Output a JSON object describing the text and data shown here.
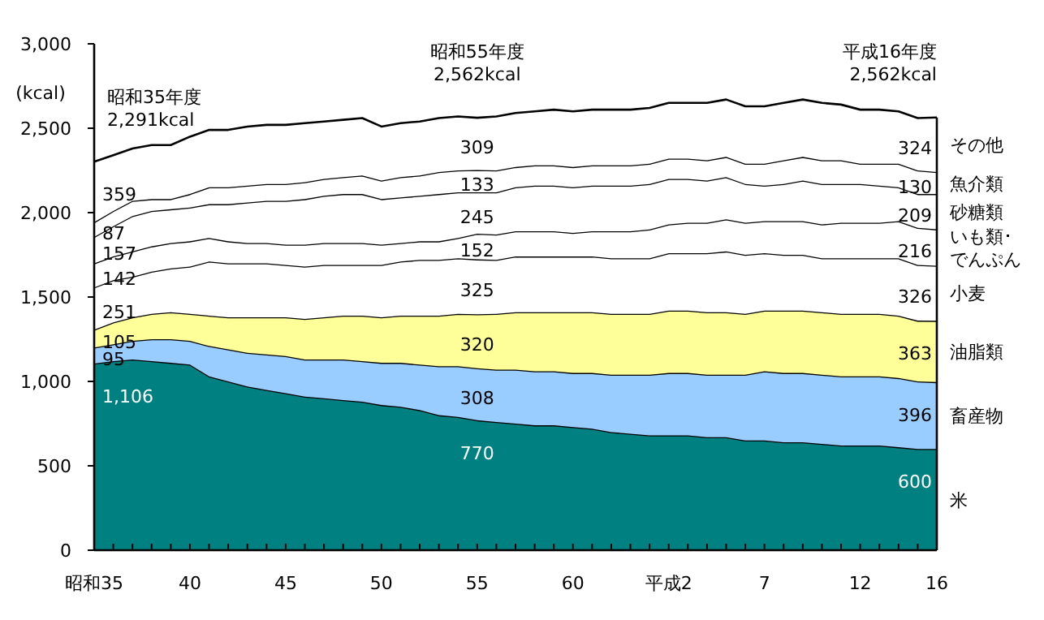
{
  "chart_data": {
    "type": "area",
    "stacked": true,
    "ylabel": "(kcal)",
    "categories": [
      "昭和35",
      null,
      null,
      null,
      null,
      "40",
      null,
      null,
      null,
      null,
      "45",
      null,
      null,
      null,
      null,
      "50",
      null,
      null,
      null,
      null,
      "55",
      null,
      null,
      null,
      null,
      "60",
      null,
      null,
      null,
      null,
      "平成2",
      null,
      null,
      null,
      null,
      "7",
      null,
      null,
      null,
      null,
      "12",
      null,
      null,
      null,
      "16"
    ],
    "ylim": [
      0,
      3000
    ],
    "yticks": [
      0,
      500,
      {
        "value": 1000,
        "label": "1,000"
      },
      {
        "value": 1500,
        "label": "1,500"
      },
      {
        "value": 2000,
        "label": "2,000"
      },
      {
        "value": 2500,
        "label": "2,500"
      },
      {
        "value": 3000,
        "label": "3,000"
      }
    ],
    "series": [
      {
        "name": "米",
        "color": "#008080",
        "values": [
          1106,
          1120,
          1130,
          1120,
          1110,
          1100,
          1030,
          1000,
          970,
          950,
          930,
          910,
          900,
          890,
          880,
          860,
          850,
          830,
          800,
          790,
          770,
          760,
          750,
          740,
          740,
          730,
          720,
          700,
          690,
          680,
          680,
          680,
          670,
          670,
          650,
          650,
          640,
          640,
          630,
          620,
          620,
          620,
          610,
          600,
          600
        ],
        "value_labels": [
          "1,106",
          null,
          null,
          null,
          null,
          null,
          null,
          null,
          null,
          null,
          null,
          null,
          null,
          null,
          null,
          null,
          null,
          null,
          null,
          null,
          "770",
          null,
          null,
          null,
          null,
          null,
          null,
          null,
          null,
          null,
          null,
          null,
          null,
          null,
          null,
          null,
          null,
          null,
          null,
          null,
          null,
          null,
          null,
          null,
          "600"
        ]
      },
      {
        "name": "畜産物",
        "color": "#99ccff",
        "values": [
          95,
          100,
          110,
          130,
          140,
          140,
          180,
          190,
          200,
          210,
          220,
          220,
          230,
          240,
          240,
          250,
          260,
          270,
          290,
          300,
          308,
          310,
          320,
          320,
          320,
          320,
          330,
          340,
          350,
          360,
          370,
          370,
          370,
          370,
          390,
          410,
          410,
          410,
          410,
          410,
          410,
          410,
          410,
          400,
          396
        ],
        "value_labels": [
          "95",
          null,
          null,
          null,
          null,
          null,
          null,
          null,
          null,
          null,
          null,
          null,
          null,
          null,
          null,
          null,
          null,
          null,
          null,
          null,
          "308",
          null,
          null,
          null,
          null,
          null,
          null,
          null,
          null,
          null,
          null,
          null,
          null,
          null,
          null,
          null,
          null,
          null,
          null,
          null,
          null,
          null,
          null,
          null,
          "396"
        ]
      },
      {
        "name": "油脂類",
        "color": "#ffff99",
        "values": [
          105,
          130,
          140,
          150,
          160,
          160,
          180,
          190,
          210,
          220,
          230,
          240,
          250,
          260,
          270,
          270,
          280,
          290,
          300,
          310,
          320,
          330,
          340,
          350,
          350,
          360,
          360,
          360,
          360,
          360,
          370,
          370,
          370,
          370,
          360,
          360,
          370,
          370,
          370,
          370,
          370,
          370,
          370,
          360,
          363
        ],
        "value_labels": [
          "105",
          null,
          null,
          null,
          null,
          null,
          null,
          null,
          null,
          null,
          null,
          null,
          null,
          null,
          null,
          null,
          null,
          null,
          null,
          null,
          "320",
          null,
          null,
          null,
          null,
          null,
          null,
          null,
          null,
          null,
          null,
          null,
          null,
          null,
          null,
          null,
          null,
          null,
          null,
          null,
          null,
          null,
          null,
          null,
          "363"
        ]
      },
      {
        "name": "小麦",
        "color": "#ffffff",
        "values": [
          251,
          250,
          240,
          250,
          260,
          280,
          320,
          320,
          320,
          320,
          310,
          310,
          310,
          300,
          300,
          310,
          320,
          330,
          330,
          330,
          325,
          320,
          330,
          330,
          330,
          330,
          330,
          330,
          330,
          330,
          340,
          340,
          350,
          360,
          350,
          340,
          330,
          330,
          320,
          330,
          330,
          330,
          340,
          330,
          326
        ],
        "value_labels": [
          "251",
          null,
          null,
          null,
          null,
          null,
          null,
          null,
          null,
          null,
          null,
          null,
          null,
          null,
          null,
          null,
          null,
          null,
          null,
          null,
          "325",
          null,
          null,
          null,
          null,
          null,
          null,
          null,
          null,
          null,
          null,
          null,
          null,
          null,
          null,
          null,
          null,
          null,
          null,
          null,
          null,
          null,
          null,
          null,
          "326"
        ]
      },
      {
        "name": "いも類･でんぷん",
        "color": "#ffffff",
        "values": [
          142,
          140,
          150,
          150,
          150,
          150,
          140,
          130,
          120,
          120,
          120,
          130,
          130,
          130,
          130,
          120,
          110,
          110,
          110,
          120,
          152,
          150,
          150,
          150,
          150,
          140,
          150,
          160,
          160,
          170,
          170,
          180,
          180,
          190,
          190,
          190,
          200,
          200,
          200,
          210,
          210,
          210,
          220,
          220,
          216
        ],
        "value_labels": [
          "142",
          null,
          null,
          null,
          null,
          null,
          null,
          null,
          null,
          null,
          null,
          null,
          null,
          null,
          null,
          null,
          null,
          null,
          null,
          null,
          "152",
          null,
          null,
          null,
          null,
          null,
          null,
          null,
          null,
          null,
          null,
          null,
          null,
          null,
          null,
          null,
          null,
          null,
          null,
          null,
          null,
          null,
          null,
          null,
          "216"
        ]
      },
      {
        "name": "砂糖類",
        "color": "#ffffff",
        "values": [
          157,
          180,
          210,
          210,
          200,
          200,
          200,
          220,
          240,
          250,
          260,
          270,
          280,
          290,
          290,
          270,
          270,
          270,
          280,
          270,
          245,
          250,
          260,
          270,
          270,
          270,
          270,
          270,
          270,
          270,
          270,
          260,
          250,
          250,
          230,
          210,
          220,
          240,
          240,
          230,
          230,
          220,
          200,
          200,
          209
        ],
        "value_labels": [
          "157",
          null,
          null,
          null,
          null,
          null,
          null,
          null,
          null,
          null,
          null,
          null,
          null,
          null,
          null,
          null,
          null,
          null,
          null,
          null,
          "245",
          null,
          null,
          null,
          null,
          null,
          null,
          null,
          null,
          null,
          null,
          null,
          null,
          null,
          null,
          null,
          null,
          null,
          null,
          null,
          null,
          null,
          null,
          null,
          "209"
        ]
      },
      {
        "name": "魚介類",
        "color": "#ffffff",
        "values": [
          87,
          90,
          90,
          70,
          60,
          80,
          100,
          100,
          100,
          100,
          100,
          100,
          100,
          100,
          110,
          110,
          120,
          120,
          130,
          130,
          133,
          130,
          120,
          120,
          120,
          120,
          120,
          120,
          120,
          120,
          120,
          120,
          120,
          120,
          120,
          130,
          140,
          140,
          140,
          140,
          120,
          130,
          140,
          140,
          130
        ],
        "value_labels": [
          "87",
          null,
          null,
          null,
          null,
          null,
          null,
          null,
          null,
          null,
          null,
          null,
          null,
          null,
          null,
          null,
          null,
          null,
          null,
          null,
          "133",
          null,
          null,
          null,
          null,
          null,
          null,
          null,
          null,
          null,
          null,
          null,
          null,
          null,
          null,
          null,
          null,
          null,
          null,
          null,
          null,
          null,
          null,
          null,
          "130"
        ]
      },
      {
        "name": "その他",
        "color": "#ffffff",
        "values": [
          359,
          330,
          310,
          320,
          320,
          340,
          340,
          340,
          350,
          350,
          350,
          350,
          340,
          340,
          340,
          320,
          320,
          320,
          320,
          320,
          309,
          320,
          320,
          320,
          330,
          330,
          330,
          330,
          330,
          330,
          330,
          330,
          340,
          340,
          340,
          340,
          340,
          340,
          340,
          330,
          320,
          320,
          310,
          310,
          324
        ],
        "value_labels": [
          "359",
          null,
          null,
          null,
          null,
          null,
          null,
          null,
          null,
          null,
          null,
          null,
          null,
          null,
          null,
          null,
          null,
          null,
          null,
          null,
          "309",
          null,
          null,
          null,
          null,
          null,
          null,
          null,
          null,
          null,
          null,
          null,
          null,
          null,
          null,
          null,
          null,
          null,
          null,
          null,
          null,
          null,
          null,
          null,
          "324"
        ]
      }
    ],
    "annotations": [
      {
        "text": "昭和35年度\n2,291kcal",
        "x": "昭和35",
        "y": 2291
      },
      {
        "text": "昭和55年度\n2,562kcal",
        "x": "55",
        "y": 2562
      },
      {
        "text": "平成16年度\n2,562kcal",
        "x": "16",
        "y": 2562
      }
    ]
  }
}
